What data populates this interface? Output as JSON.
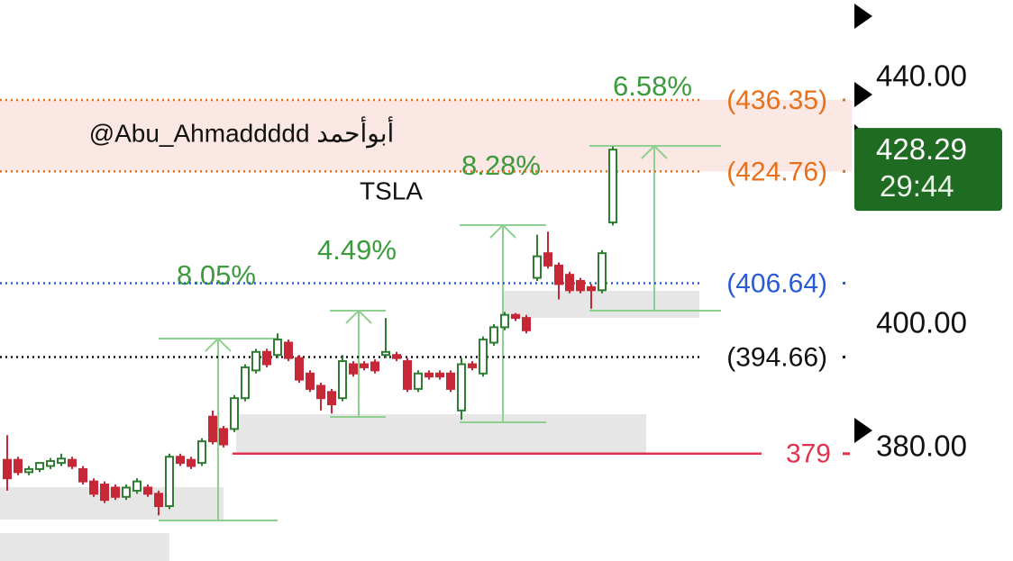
{
  "chart_data": {
    "type": "candlestick",
    "symbol": "TSLA",
    "watermark": "@Abu_Ahmaddddd أبوأحمد",
    "ylim": [
      361.6,
      452.55
    ],
    "yticks": [
      {
        "value": 440,
        "label": "440.00"
      },
      {
        "value": 400,
        "label": "400.00"
      },
      {
        "value": 380,
        "label": "380.00"
      }
    ],
    "up_color": "#2e7d32",
    "down_color": "#c62837",
    "open": [
      378,
      378,
      376,
      376.5,
      377,
      377.5,
      378,
      376.5,
      374.5,
      374,
      373.5,
      372,
      373,
      373.5,
      372.5,
      370.5,
      378.5,
      378,
      377.5,
      385,
      383,
      383,
      388,
      392.5,
      395.5,
      395,
      397,
      394.5,
      392,
      390,
      389,
      388,
      393.5,
      393.5,
      393.8,
      395,
      395,
      394,
      389.5,
      392,
      392,
      392,
      386,
      393.5,
      392,
      397,
      399.5,
      401.5,
      401,
      407.5,
      411.5,
      409.5,
      408,
      407,
      406,
      405.5,
      416.5
    ],
    "high": [
      382,
      378.5,
      377,
      377.5,
      378.3,
      379,
      378.5,
      377,
      375,
      374.5,
      374,
      374,
      375,
      374,
      373,
      379,
      379,
      378.5,
      381.5,
      386,
      383.5,
      388.5,
      393.5,
      396,
      396,
      398.5,
      397.5,
      395,
      392.5,
      390.5,
      389.5,
      395,
      394,
      394,
      394.3,
      401,
      395.5,
      394.5,
      392.5,
      392.5,
      392.5,
      392.5,
      394.5,
      394,
      398,
      400,
      402,
      401.8,
      401.5,
      414.5,
      415,
      410,
      408.5,
      407.5,
      406.5,
      412,
      428.8
    ],
    "low": [
      373,
      375.5,
      375.5,
      376,
      376.5,
      377,
      376.5,
      374,
      372,
      371,
      371.5,
      371.5,
      372.5,
      372,
      369,
      370,
      377,
      376.5,
      377,
      380.5,
      380,
      382.5,
      387.5,
      392,
      393,
      394.5,
      394,
      390.5,
      389,
      386,
      385.5,
      387.5,
      391.5,
      392.5,
      392,
      394.5,
      394,
      389,
      389,
      391,
      391,
      389,
      384.5,
      392.5,
      391.5,
      396.5,
      399,
      400.5,
      398.5,
      407,
      409,
      404,
      405,
      405,
      402.5,
      405,
      416
    ],
    "close": [
      375,
      376,
      376.5,
      377.5,
      377.8,
      378.2,
      377,
      374.5,
      372.5,
      371.5,
      372,
      373.5,
      374.5,
      372.5,
      370.5,
      378.5,
      377.5,
      377,
      381,
      381,
      380.5,
      388,
      393,
      395.5,
      393.5,
      397.5,
      394.5,
      391,
      389.5,
      388,
      387,
      394,
      392,
      393,
      392.5,
      395.5,
      394.5,
      389.5,
      392,
      391.5,
      391.5,
      389.5,
      393.5,
      393,
      397.5,
      399.5,
      401.5,
      401,
      399,
      411,
      409.5,
      406.5,
      405.5,
      405.5,
      405.5,
      411.5,
      428.29
    ],
    "levels": [
      {
        "value": 436.35,
        "label": "(436.35)",
        "color": "#e8701a",
        "style": "dotted"
      },
      {
        "value": 424.76,
        "label": "(424.76)",
        "color": "#e8701a",
        "style": "dotted"
      },
      {
        "value": 406.64,
        "label": "(406.64)",
        "color": "#2a5bd7",
        "style": "dotted"
      },
      {
        "value": 394.66,
        "label": "(394.66)",
        "color": "#111111",
        "style": "dotted"
      },
      {
        "value": 379,
        "label": "379",
        "color": "#e0334f",
        "style": "solid"
      }
    ],
    "last_price": 428.29,
    "countdown": "29:44",
    "last_color": "#1f6b22",
    "measures": [
      "8.05%",
      "4.49%",
      "8.28%",
      "6.58%"
    ]
  }
}
